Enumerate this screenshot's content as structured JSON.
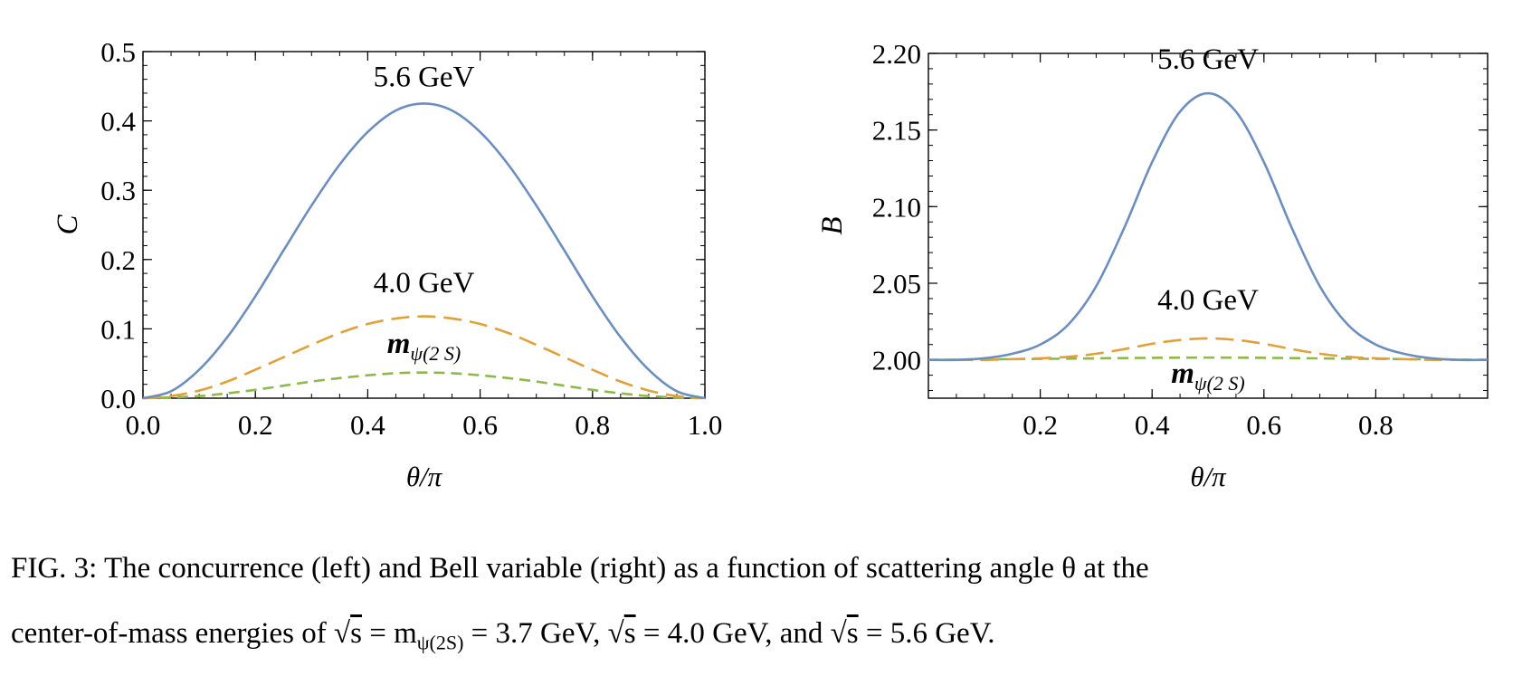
{
  "chart_data": [
    {
      "type": "line",
      "panel": "left",
      "ylabel": "C",
      "xlabel": "θ/π",
      "xlim": [
        0.0,
        1.0
      ],
      "ylim": [
        0.0,
        0.5
      ],
      "xticks": [
        "0.0",
        "0.2",
        "0.4",
        "0.6",
        "0.8",
        "1.0"
      ],
      "yticks": [
        "0.0",
        "0.1",
        "0.2",
        "0.3",
        "0.4",
        "0.5"
      ],
      "grid": false,
      "series": [
        {
          "name": "5.6 GeV",
          "color": "#6c8ebf",
          "dash": "solid",
          "x": [
            0,
            0.05,
            0.1,
            0.15,
            0.2,
            0.25,
            0.3,
            0.35,
            0.4,
            0.45,
            0.5,
            0.55,
            0.6,
            0.65,
            0.7,
            0.75,
            0.8,
            0.85,
            0.9,
            0.95,
            1.0
          ],
          "y": [
            0,
            0.01,
            0.041,
            0.088,
            0.147,
            0.213,
            0.278,
            0.337,
            0.384,
            0.415,
            0.425,
            0.415,
            0.384,
            0.337,
            0.278,
            0.213,
            0.147,
            0.088,
            0.041,
            0.01,
            0
          ]
        },
        {
          "name": "4.0 GeV",
          "color": "#e0a13a",
          "dash": "long",
          "x": [
            0,
            0.05,
            0.1,
            0.15,
            0.2,
            0.25,
            0.3,
            0.35,
            0.4,
            0.45,
            0.5,
            0.55,
            0.6,
            0.65,
            0.7,
            0.75,
            0.8,
            0.85,
            0.9,
            0.95,
            1.0
          ],
          "y": [
            0,
            0.003,
            0.011,
            0.024,
            0.041,
            0.059,
            0.077,
            0.094,
            0.107,
            0.115,
            0.118,
            0.115,
            0.107,
            0.094,
            0.077,
            0.059,
            0.041,
            0.024,
            0.011,
            0.003,
            0
          ]
        },
        {
          "name": "mψ(2 S)",
          "color": "#8fb84c",
          "dash": "short",
          "x": [
            0,
            0.05,
            0.1,
            0.15,
            0.2,
            0.25,
            0.3,
            0.35,
            0.4,
            0.45,
            0.5,
            0.55,
            0.6,
            0.65,
            0.7,
            0.75,
            0.8,
            0.85,
            0.9,
            0.95,
            1.0
          ],
          "y": [
            0,
            0.001,
            0.003,
            0.007,
            0.012,
            0.018,
            0.024,
            0.029,
            0.033,
            0.036,
            0.037,
            0.036,
            0.033,
            0.029,
            0.024,
            0.018,
            0.012,
            0.007,
            0.003,
            0.001,
            0
          ]
        }
      ],
      "annotations": [
        {
          "text": "5.6 GeV",
          "x": 0.5,
          "y": 0.45
        },
        {
          "text": "4.0 GeV",
          "x": 0.5,
          "y": 0.153
        },
        {
          "text_main": "m",
          "text_sub": "ψ(2 S)",
          "x": 0.5,
          "y": 0.065
        }
      ]
    },
    {
      "type": "line",
      "panel": "right",
      "ylabel": "B",
      "xlabel": "θ/π",
      "xlim": [
        0.0,
        1.0
      ],
      "ylim": [
        1.975,
        2.2
      ],
      "xticks": [
        "0.2",
        "0.4",
        "0.6",
        "0.8"
      ],
      "yticks": [
        "2.00",
        "2.05",
        "2.10",
        "2.15",
        "2.20"
      ],
      "grid": false,
      "series": [
        {
          "name": "5.6 GeV",
          "color": "#6c8ebf",
          "dash": "solid",
          "x": [
            0,
            0.05,
            0.1,
            0.15,
            0.2,
            0.25,
            0.3,
            0.35,
            0.4,
            0.45,
            0.5,
            0.55,
            0.6,
            0.65,
            0.7,
            0.75,
            0.8,
            0.85,
            0.9,
            0.95,
            1.0
          ],
          "y": [
            2.0,
            2.0,
            2.001,
            2.004,
            2.01,
            2.023,
            2.048,
            2.086,
            2.129,
            2.162,
            2.174,
            2.162,
            2.129,
            2.086,
            2.048,
            2.023,
            2.01,
            2.004,
            2.001,
            2.0,
            2.0
          ]
        },
        {
          "name": "4.0 GeV",
          "color": "#e0a13a",
          "dash": "long",
          "x": [
            0,
            0.05,
            0.1,
            0.15,
            0.2,
            0.25,
            0.3,
            0.35,
            0.4,
            0.45,
            0.5,
            0.55,
            0.6,
            0.65,
            0.7,
            0.75,
            0.8,
            0.85,
            0.9,
            0.95,
            1.0
          ],
          "y": [
            2.0,
            2.0,
            2.0,
            2.0005,
            2.001,
            2.002,
            2.004,
            2.007,
            2.0105,
            2.013,
            2.014,
            2.013,
            2.0105,
            2.007,
            2.004,
            2.002,
            2.001,
            2.0005,
            2.0,
            2.0,
            2.0
          ]
        },
        {
          "name": "mψ(2 S)",
          "color": "#8fb84c",
          "dash": "short",
          "x": [
            0,
            0.25,
            0.5,
            0.75,
            1.0
          ],
          "y": [
            2.0,
            2.0008,
            2.0015,
            2.0008,
            2.0
          ]
        }
      ],
      "annotations": [
        {
          "text": "5.6 GeV",
          "x": 0.5,
          "y": 2.19
        },
        {
          "text": "4.0 GeV",
          "x": 0.5,
          "y": 2.033
        },
        {
          "text_main": "m",
          "text_sub": "ψ(2 S)",
          "x": 0.5,
          "y": 1.985
        }
      ]
    }
  ],
  "caption": {
    "line1": "FIG. 3: The concurrence (left) and Bell variable (right) as a function of scattering angle θ at the",
    "line2_a": "center-of-mass energies of ",
    "sqrt_s": "s",
    "eq1_main": " = m",
    "eq1_sub": "ψ(2S)",
    "eq1_rest": " = 3.7 GeV, ",
    "eq2_rest": " = 4.0 GeV, and ",
    "eq3_rest": " = 5.6 GeV."
  }
}
